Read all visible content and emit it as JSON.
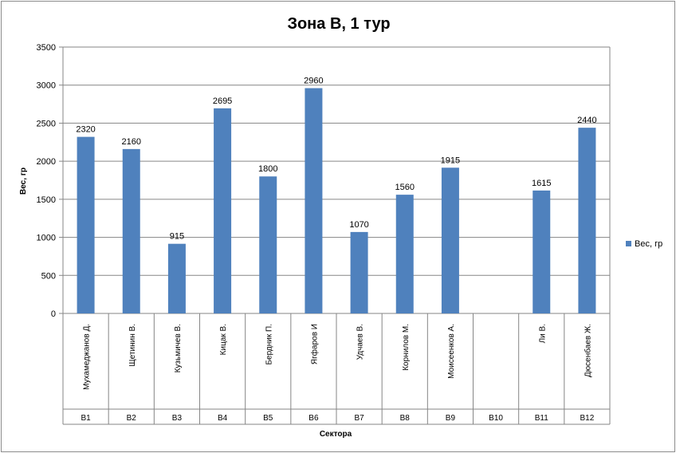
{
  "chart_data": {
    "type": "bar",
    "title": "Зона В, 1 тур",
    "xlabel": "Сектора",
    "ylabel": "Вес, гр",
    "ylim": [
      0,
      3500
    ],
    "yticks": [
      0,
      500,
      1000,
      1500,
      2000,
      2500,
      3000,
      3500
    ],
    "grid": true,
    "legend_position": "right",
    "bar_color": "#4F81BD",
    "categories": [
      {
        "sector": "В1",
        "name": "Мухамеджанов Д."
      },
      {
        "sector": "В2",
        "name": "Щетинин В."
      },
      {
        "sector": "В3",
        "name": "Кузьмичев В."
      },
      {
        "sector": "В4",
        "name": "Кицак В."
      },
      {
        "sector": "В5",
        "name": "Бердник П."
      },
      {
        "sector": "В6",
        "name": "Ягфаров И"
      },
      {
        "sector": "В7",
        "name": "Удчаев В."
      },
      {
        "sector": "В8",
        "name": "Корнилов М."
      },
      {
        "sector": "В9",
        "name": "Моисеенков А."
      },
      {
        "sector": "В10",
        "name": ""
      },
      {
        "sector": "В11",
        "name": "Ли В."
      },
      {
        "sector": "В12",
        "name": "Дюсенбаев Ж."
      }
    ],
    "series": [
      {
        "name": "Вес, гр",
        "values": [
          2320,
          2160,
          915,
          2695,
          1800,
          2960,
          1070,
          1560,
          1915,
          null,
          1615,
          2440
        ]
      }
    ]
  }
}
